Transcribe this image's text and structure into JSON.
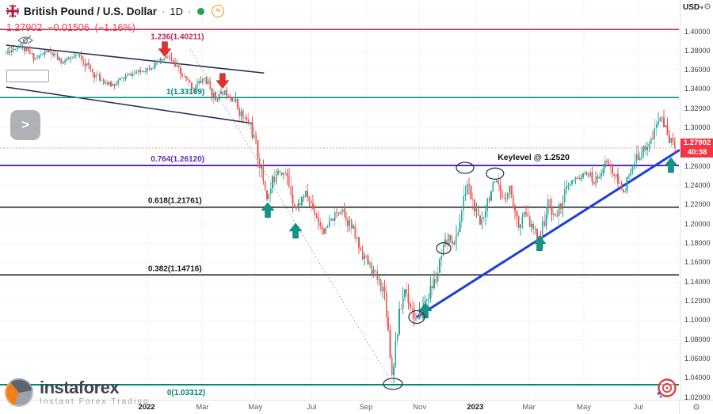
{
  "legend": {
    "title": "British Pound / U.S. Dollar",
    "sep": "·",
    "timeframe": "1D",
    "approx_badge": "≈",
    "price": "1.27902",
    "change": "−0.01506",
    "change_pct": "(−1.16%)"
  },
  "top_right": {
    "currency": "USD",
    "caret": "▾",
    "gear": "⚙"
  },
  "controls": {
    "expand": ">",
    "gear": "⚙",
    "collapsed_marker": "^"
  },
  "watermark": {
    "brand": "instaforex",
    "tagline": "Instant Forex Trading"
  },
  "chart_data": {
    "type": "candlestick",
    "title": "British Pound / U.S. Dollar",
    "timeframe": "1D",
    "quote_currency": "USD",
    "last_price": 1.27902,
    "last_price_label": "1.27902",
    "countdown": "40:38",
    "change": "−0.01506",
    "change_pct": "−1.16%",
    "candles": {
      "count": 365,
      "up_color": "#26a69a",
      "down_color": "#ef5350",
      "seed": 11
    },
    "y_axis": {
      "top_tick": 1.4,
      "bottom_tick": 1.02,
      "tick_step": 0.02,
      "ticks": [
        "1.40000",
        "1.38000",
        "1.36000",
        "1.34000",
        "1.32000",
        "1.30000",
        "1.28000",
        "1.26000",
        "1.24000",
        "1.22000",
        "1.20000",
        "1.18000",
        "1.16000",
        "1.14000",
        "1.12000",
        "1.10000",
        "1.08000",
        "1.06000",
        "1.04000",
        "1.02000"
      ]
    },
    "x_axis_ticks": [
      {
        "label": "2022",
        "f": 0.216,
        "year": true
      },
      {
        "label": "Mar",
        "f": 0.298,
        "year": false
      },
      {
        "label": "May",
        "f": 0.376,
        "year": false
      },
      {
        "label": "Jul",
        "f": 0.459,
        "year": false
      },
      {
        "label": "Sep",
        "f": 0.539,
        "year": false
      },
      {
        "label": "Nov",
        "f": 0.618,
        "year": false
      },
      {
        "label": "2023",
        "f": 0.7,
        "year": true
      },
      {
        "label": "Mar",
        "f": 0.779,
        "year": false
      },
      {
        "label": "May",
        "f": 0.86,
        "year": false
      },
      {
        "label": "Jul",
        "f": 0.94,
        "year": false
      }
    ],
    "fib_levels": [
      {
        "label": "1.236(1.40211)",
        "price": 1.40211,
        "color": "#c2255c",
        "width": 1.5,
        "label_f": 0.222,
        "label_dy": 12
      },
      {
        "label": "1(1.33169)",
        "price": 1.33169,
        "color": "#00897b",
        "width": 1.6,
        "label_f": 0.245,
        "label_dy": -4
      },
      {
        "label": "0.764(1.26120)",
        "price": 1.2612,
        "color": "#5f2eb3",
        "width": 2,
        "label_f": 0.222,
        "label_dy": -5
      },
      {
        "label": "0.618(1.21761)",
        "price": 1.21761,
        "color": "#15171c",
        "width": 1.4,
        "label_f": 0.218,
        "label_dy": -5
      },
      {
        "label": "0.382(1.14716)",
        "price": 1.14716,
        "color": "#15171c",
        "width": 1.4,
        "label_f": 0.218,
        "label_dy": -5
      },
      {
        "label": "0(1.03312)",
        "price": 1.03312,
        "color": "#00897b",
        "width": 1.6,
        "label_f": 0.246,
        "label_dy": 13
      }
    ],
    "key_level_annotation": {
      "text": "Keylevel @ 1.2520",
      "f": 0.733,
      "price": 1.2667
    },
    "current_price_line": {
      "color": "#f23645",
      "dash": "2 2",
      "opacity": 0.45
    },
    "trendline": {
      "from": {
        "f": 0.615,
        "price": 1.104
      },
      "to": {
        "f": 1.0,
        "price": 1.2766
      },
      "color": "#1d3fd6",
      "width": 3
    },
    "channel_lines": [
      {
        "from": {
          "f": 0.009,
          "price": 1.386
        },
        "to": {
          "f": 0.389,
          "price": 1.357
        },
        "color": "#252a52",
        "width": 1.5
      },
      {
        "from": {
          "f": 0.009,
          "price": 1.3424
        },
        "to": {
          "f": 0.373,
          "price": 1.3046
        },
        "color": "#252a52",
        "width": 1.5
      }
    ],
    "dotted_line": {
      "from": {
        "f": 0.28,
        "price": 1.3819
      },
      "to": {
        "f": 0.578,
        "price": 1.0345
      },
      "color": "#9aa0a6"
    },
    "arrows": [
      {
        "dir": "down",
        "f": 0.2427,
        "price": 1.374,
        "color": "#e03131"
      },
      {
        "dir": "down",
        "f": 0.3278,
        "price": 1.341,
        "color": "#e03131"
      },
      {
        "dir": "up",
        "f": 0.3944,
        "price": 1.2225,
        "color": "#129488"
      },
      {
        "dir": "up",
        "f": 0.4353,
        "price": 1.201,
        "color": "#129488"
      },
      {
        "dir": "up",
        "f": 0.6266,
        "price": 1.118,
        "color": "#129488"
      },
      {
        "dir": "up",
        "f": 0.7946,
        "price": 1.188,
        "color": "#129488"
      },
      {
        "dir": "up",
        "f": 0.9883,
        "price": 1.2692,
        "color": "#129488"
      }
    ],
    "ellipses": [
      {
        "f": 0.685,
        "price": 1.2585,
        "rx": 11,
        "ry": 7
      },
      {
        "f": 0.729,
        "price": 1.2525,
        "rx": 11,
        "ry": 7
      },
      {
        "f": 0.6534,
        "price": 1.175,
        "rx": 9,
        "ry": 7
      },
      {
        "f": 0.6138,
        "price": 1.1035,
        "rx": 10,
        "ry": 8
      },
      {
        "f": 0.5788,
        "price": 1.034,
        "rx": 12,
        "ry": 7
      }
    ],
    "price_path": [
      [
        0.009,
        1.378
      ],
      [
        0.029,
        1.386
      ],
      [
        0.052,
        1.372
      ],
      [
        0.07,
        1.38
      ],
      [
        0.091,
        1.368
      ],
      [
        0.117,
        1.3755
      ],
      [
        0.138,
        1.356
      ],
      [
        0.163,
        1.344
      ],
      [
        0.187,
        1.354
      ],
      [
        0.208,
        1.359
      ],
      [
        0.227,
        1.365
      ],
      [
        0.247,
        1.374
      ],
      [
        0.266,
        1.356
      ],
      [
        0.285,
        1.341
      ],
      [
        0.301,
        1.352
      ],
      [
        0.317,
        1.33
      ],
      [
        0.331,
        1.338
      ],
      [
        0.345,
        1.329
      ],
      [
        0.357,
        1.312
      ],
      [
        0.369,
        1.303
      ],
      [
        0.38,
        1.272
      ],
      [
        0.394,
        1.226
      ],
      [
        0.408,
        1.258
      ],
      [
        0.422,
        1.25
      ],
      [
        0.436,
        1.216
      ],
      [
        0.45,
        1.233
      ],
      [
        0.464,
        1.212
      ],
      [
        0.478,
        1.191
      ],
      [
        0.49,
        1.206
      ],
      [
        0.504,
        1.217
      ],
      [
        0.518,
        1.196
      ],
      [
        0.532,
        1.172
      ],
      [
        0.546,
        1.155
      ],
      [
        0.558,
        1.14
      ],
      [
        0.567,
        1.128
      ],
      [
        0.5735,
        1.076
      ],
      [
        0.5776,
        1.041
      ],
      [
        0.582,
        1.073
      ],
      [
        0.588,
        1.105
      ],
      [
        0.596,
        1.133
      ],
      [
        0.604,
        1.118
      ],
      [
        0.614,
        1.098
      ],
      [
        0.623,
        1.115
      ],
      [
        0.632,
        1.128
      ],
      [
        0.644,
        1.147
      ],
      [
        0.653,
        1.172
      ],
      [
        0.662,
        1.187
      ],
      [
        0.67,
        1.178
      ],
      [
        0.679,
        1.21
      ],
      [
        0.688,
        1.243
      ],
      [
        0.698,
        1.218
      ],
      [
        0.707,
        1.199
      ],
      [
        0.719,
        1.228
      ],
      [
        0.73,
        1.244
      ],
      [
        0.74,
        1.225
      ],
      [
        0.751,
        1.239
      ],
      [
        0.763,
        1.197
      ],
      [
        0.772,
        1.212
      ],
      [
        0.784,
        1.195
      ],
      [
        0.796,
        1.186
      ],
      [
        0.807,
        1.222
      ],
      [
        0.819,
        1.207
      ],
      [
        0.831,
        1.232
      ],
      [
        0.842,
        1.243
      ],
      [
        0.854,
        1.249
      ],
      [
        0.866,
        1.253
      ],
      [
        0.875,
        1.242
      ],
      [
        0.884,
        1.255
      ],
      [
        0.894,
        1.266
      ],
      [
        0.905,
        1.25
      ],
      [
        0.917,
        1.234
      ],
      [
        0.929,
        1.252
      ],
      [
        0.94,
        1.272
      ],
      [
        0.952,
        1.281
      ],
      [
        0.961,
        1.289
      ],
      [
        0.97,
        1.308
      ],
      [
        0.974,
        1.3135
      ],
      [
        0.98,
        1.298
      ],
      [
        0.987,
        1.288
      ],
      [
        0.994,
        1.279
      ]
    ]
  }
}
